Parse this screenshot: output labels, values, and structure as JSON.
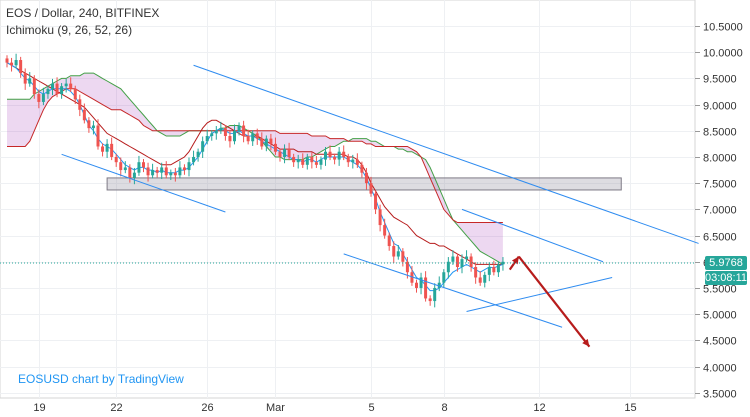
{
  "legend": {
    "title": "EOS / Dollar, 240, BITFINEX",
    "indicator": "Ichimoku (9, 26, 52, 26)"
  },
  "watermark": "EOSUSD chart by TradingView",
  "colors": {
    "up": "#26a69a",
    "down": "#ef5350",
    "tenkan": "#2196f3",
    "kijun": "#b71c1c",
    "span_a": "#43a047",
    "span_b": "#c62828",
    "cloud": "#9c27b0",
    "channel": "#2f8cf0",
    "zone": "#9e9aa8",
    "arrow": "#b71c1c",
    "price_label": "#26a69a"
  },
  "chart_data": {
    "type": "candlestick",
    "symbol": "EOS / Dollar",
    "interval": "240",
    "exchange": "BITFINEX",
    "ylim": [
      3.4,
      10.9
    ],
    "y_ticks": [
      "10.5000",
      "10.0000",
      "9.5000",
      "9.0000",
      "8.5000",
      "8.0000",
      "7.5000",
      "7.0000",
      "6.5000",
      "6.0000",
      "5.5000",
      "5.0000",
      "4.5000",
      "4.0000",
      "3.5000"
    ],
    "y_tick_values": [
      10.5,
      10.0,
      9.5,
      9.0,
      8.5,
      8.0,
      7.5,
      7.0,
      6.5,
      6.0,
      5.5,
      5.0,
      4.5,
      4.0,
      3.5
    ],
    "x_ticks": [
      "19",
      "22",
      "26",
      "Mar",
      "5",
      "8",
      "12",
      "15"
    ],
    "x_tick_bar": [
      7,
      24,
      44,
      59,
      80,
      96,
      117,
      137
    ],
    "current_price": "5.9768",
    "countdown": "03:08:11",
    "current_price_value": 5.9768,
    "close": [
      9.8,
      9.75,
      9.85,
      9.6,
      9.4,
      9.5,
      9.2,
      9.05,
      9.2,
      9.3,
      9.4,
      9.2,
      9.35,
      9.4,
      9.3,
      9.1,
      8.9,
      8.7,
      8.55,
      8.6,
      8.2,
      8.1,
      8.25,
      8.0,
      7.9,
      7.75,
      7.8,
      7.6,
      7.7,
      7.9,
      7.8,
      7.65,
      7.75,
      7.7,
      7.8,
      7.65,
      7.7,
      7.65,
      7.8,
      7.75,
      7.9,
      8.0,
      8.1,
      8.3,
      8.4,
      8.45,
      8.5,
      8.55,
      8.4,
      8.3,
      8.5,
      8.6,
      8.4,
      8.3,
      8.45,
      8.35,
      8.2,
      8.35,
      8.25,
      8.1,
      8.0,
      8.15,
      8.0,
      7.9,
      7.95,
      7.85,
      8.0,
      7.9,
      7.85,
      7.95,
      8.1,
      8.0,
      7.95,
      8.1,
      8.0,
      7.9,
      7.95,
      7.85,
      7.7,
      7.5,
      7.3,
      7.0,
      6.7,
      6.5,
      6.3,
      6.1,
      6.2,
      6.0,
      5.8,
      5.6,
      5.5,
      5.7,
      5.3,
      5.25,
      5.5,
      5.6,
      5.8,
      6.0,
      6.1,
      5.9,
      6.05,
      6.1,
      5.9,
      5.7,
      5.6,
      5.75,
      5.9,
      5.8,
      5.95,
      6.0
    ],
    "tenkan": [
      9.8,
      9.75,
      9.7,
      9.6,
      9.5,
      9.45,
      9.35,
      9.25,
      9.2,
      9.25,
      9.3,
      9.3,
      9.3,
      9.3,
      9.25,
      9.15,
      9.0,
      8.8,
      8.6,
      8.5,
      8.35,
      8.25,
      8.2,
      8.15,
      8.05,
      7.95,
      7.85,
      7.8,
      7.75,
      7.8,
      7.8,
      7.75,
      7.75,
      7.7,
      7.75,
      7.7,
      7.7,
      7.7,
      7.75,
      7.75,
      7.8,
      7.9,
      8.0,
      8.15,
      8.3,
      8.45,
      8.5,
      8.55,
      8.5,
      8.45,
      8.45,
      8.5,
      8.45,
      8.4,
      8.4,
      8.35,
      8.3,
      8.25,
      8.2,
      8.15,
      8.1,
      8.05,
      8.0,
      7.95,
      7.95,
      7.9,
      7.95,
      7.95,
      7.9,
      7.95,
      8.0,
      8.0,
      8.0,
      8.0,
      8.0,
      7.95,
      7.9,
      7.85,
      7.75,
      7.6,
      7.4,
      7.2,
      6.95,
      6.75,
      6.55,
      6.35,
      6.3,
      6.15,
      6.0,
      5.85,
      5.7,
      5.65,
      5.55,
      5.45,
      5.45,
      5.5,
      5.6,
      5.7,
      5.8,
      5.85,
      5.9,
      5.95,
      5.9,
      5.85,
      5.8,
      5.85,
      5.9,
      5.88,
      5.92,
      5.95
    ],
    "kijun": [
      9.8,
      9.75,
      9.7,
      9.65,
      9.6,
      9.55,
      9.5,
      9.45,
      9.4,
      9.35,
      9.3,
      9.25,
      9.2,
      9.15,
      9.1,
      9.05,
      9.0,
      8.95,
      8.85,
      8.75,
      8.65,
      8.55,
      8.45,
      8.4,
      8.35,
      8.3,
      8.25,
      8.2,
      8.15,
      8.1,
      8.05,
      8.0,
      7.95,
      7.9,
      7.85,
      7.85,
      7.85,
      7.9,
      7.95,
      8.0,
      8.1,
      8.25,
      8.4,
      8.55,
      8.65,
      8.7,
      8.7,
      8.65,
      8.6,
      8.55,
      8.5,
      8.45,
      8.4,
      8.4,
      8.4,
      8.4,
      8.35,
      8.3,
      8.25,
      8.2,
      8.15,
      8.15,
      8.15,
      8.15,
      8.1,
      8.1,
      8.1,
      8.1,
      8.05,
      8.05,
      8.05,
      8.05,
      8.05,
      8.05,
      8.05,
      8.0,
      8.0,
      7.95,
      7.85,
      7.7,
      7.5,
      7.35,
      7.2,
      7.05,
      6.95,
      6.85,
      6.8,
      6.75,
      6.7,
      6.6,
      6.5,
      6.45,
      6.4,
      6.35,
      6.35,
      6.3,
      6.3,
      6.25,
      6.2,
      6.15,
      6.1,
      6.05,
      6.0,
      5.95,
      5.95,
      5.95,
      5.95,
      5.95,
      5.95,
      5.95
    ],
    "span_a": [
      9.1,
      9.1,
      9.1,
      9.1,
      9.1,
      9.1,
      9.2,
      9.25,
      9.3,
      9.35,
      9.4,
      9.45,
      9.5,
      9.5,
      9.55,
      9.55,
      9.55,
      9.6,
      9.6,
      9.6,
      9.55,
      9.5,
      9.45,
      9.4,
      9.35,
      9.3,
      9.2,
      9.1,
      9.0,
      8.9,
      8.8,
      8.7,
      8.6,
      8.5,
      8.45,
      8.4,
      8.4,
      8.4,
      8.4,
      8.45,
      8.5,
      8.5,
      8.5,
      8.5,
      8.5,
      8.5,
      8.5,
      8.55,
      8.55,
      8.6,
      8.6,
      8.6,
      8.55,
      8.5,
      8.45,
      8.4,
      8.3,
      8.2,
      8.1,
      8.0,
      8.0,
      7.95,
      7.95,
      7.95,
      7.95,
      7.95,
      8.0,
      8.0,
      8.05,
      8.1,
      8.15,
      8.2,
      8.2,
      8.25,
      8.3,
      8.3,
      8.35,
      8.35,
      8.35,
      8.35,
      8.3,
      8.3,
      8.25,
      8.2,
      8.2,
      8.2,
      8.15,
      8.15,
      8.1,
      8.1,
      8.05,
      8.0,
      7.95,
      7.8,
      7.6,
      7.4,
      7.2,
      7.0,
      6.8,
      6.7,
      6.6,
      6.5,
      6.4,
      6.3,
      6.2,
      6.15,
      6.1,
      6.05,
      6.0,
      5.95
    ],
    "span_b": [
      8.2,
      8.2,
      8.2,
      8.2,
      8.2,
      8.3,
      8.5,
      8.7,
      8.9,
      9.05,
      9.15,
      9.2,
      9.25,
      9.3,
      9.3,
      9.3,
      9.25,
      9.2,
      9.15,
      9.1,
      9.05,
      9.0,
      8.95,
      8.9,
      8.9,
      8.9,
      8.85,
      8.8,
      8.75,
      8.7,
      8.6,
      8.55,
      8.5,
      8.5,
      8.5,
      8.5,
      8.5,
      8.5,
      8.5,
      8.5,
      8.5,
      8.5,
      8.5,
      8.5,
      8.5,
      8.5,
      8.5,
      8.5,
      8.5,
      8.5,
      8.5,
      8.5,
      8.5,
      8.5,
      8.5,
      8.5,
      8.5,
      8.5,
      8.5,
      8.5,
      8.45,
      8.45,
      8.45,
      8.45,
      8.45,
      8.45,
      8.45,
      8.4,
      8.4,
      8.4,
      8.4,
      8.35,
      8.35,
      8.35,
      8.35,
      8.3,
      8.3,
      8.3,
      8.3,
      8.25,
      8.25,
      8.2,
      8.2,
      8.2,
      8.2,
      8.2,
      8.2,
      8.2,
      8.2,
      8.15,
      8.1,
      8.0,
      7.8,
      7.6,
      7.4,
      7.2,
      7.0,
      6.9,
      6.8,
      6.75,
      6.75,
      6.75,
      6.75,
      6.75,
      6.75,
      6.75,
      6.75,
      6.75,
      6.75,
      6.75
    ]
  }
}
